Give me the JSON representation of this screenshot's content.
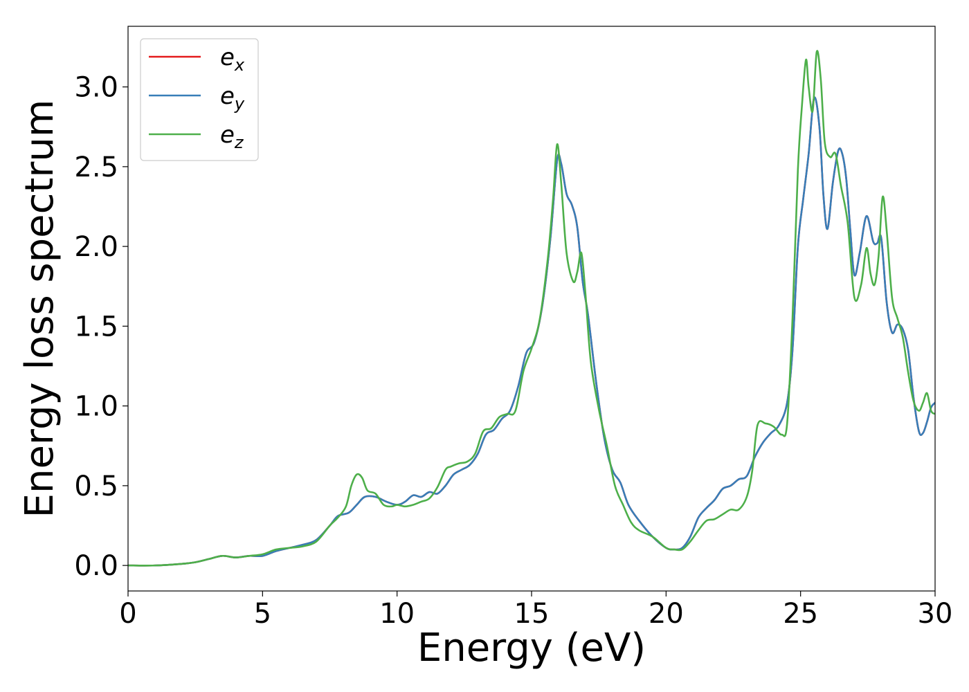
{
  "chart_data": {
    "type": "line",
    "title": "",
    "xlabel": "Energy (eV)",
    "ylabel": "Energy loss spectrum",
    "xlim": [
      0,
      30
    ],
    "ylim": [
      -0.16,
      3.38
    ],
    "xticks": [
      0,
      5,
      10,
      15,
      20,
      25,
      30
    ],
    "yticks": [
      0.0,
      0.5,
      1.0,
      1.5,
      2.0,
      2.5,
      3.0
    ],
    "xtick_labels": [
      "0",
      "5",
      "10",
      "15",
      "20",
      "25",
      "30"
    ],
    "ytick_labels": [
      "0.0",
      "0.5",
      "1.0",
      "1.5",
      "2.0",
      "2.5",
      "3.0"
    ],
    "grid": false,
    "legend_position": "top-left",
    "series": [
      {
        "name": "e_x",
        "legend_base": "e",
        "legend_sub": "x",
        "color": "#e41a1c",
        "x": [
          0,
          1,
          2,
          2.5,
          3,
          3.5,
          4,
          4.5,
          5,
          5.5,
          6,
          6.5,
          7,
          7.5,
          7.8,
          8.2,
          8.5,
          8.8,
          9.2,
          9.6,
          10,
          10.3,
          10.6,
          10.9,
          11.2,
          11.5,
          11.8,
          12.1,
          12.4,
          12.7,
          13,
          13.3,
          13.6,
          13.9,
          14.2,
          14.5,
          14.8,
          15.1,
          15.4,
          15.7,
          15.95,
          16.1,
          16.3,
          16.5,
          16.7,
          16.9,
          17.1,
          17.4,
          17.7,
          18,
          18.3,
          18.6,
          19,
          19.5,
          20,
          20.3,
          20.6,
          20.9,
          21.2,
          21.5,
          21.8,
          22.1,
          22.4,
          22.7,
          23,
          23.3,
          23.6,
          23.9,
          24.2,
          24.5,
          24.7,
          24.9,
          25.1,
          25.3,
          25.5,
          25.7,
          25.85,
          26,
          26.2,
          26.4,
          26.55,
          26.7,
          26.85,
          27,
          27.2,
          27.45,
          27.7,
          27.85,
          28,
          28.2,
          28.4,
          28.6,
          28.8,
          29,
          29.2,
          29.4,
          29.55,
          29.7,
          29.85,
          30
        ],
        "values": [
          0.0,
          0.0,
          0.01,
          0.02,
          0.04,
          0.06,
          0.05,
          0.06,
          0.06,
          0.09,
          0.11,
          0.13,
          0.16,
          0.25,
          0.31,
          0.33,
          0.38,
          0.43,
          0.43,
          0.4,
          0.38,
          0.4,
          0.44,
          0.43,
          0.46,
          0.45,
          0.5,
          0.57,
          0.6,
          0.63,
          0.7,
          0.82,
          0.85,
          0.92,
          0.97,
          1.12,
          1.33,
          1.4,
          1.63,
          2.05,
          2.54,
          2.52,
          2.33,
          2.26,
          2.12,
          1.78,
          1.57,
          1.15,
          0.8,
          0.6,
          0.52,
          0.38,
          0.28,
          0.18,
          0.11,
          0.1,
          0.11,
          0.18,
          0.3,
          0.36,
          0.41,
          0.48,
          0.5,
          0.54,
          0.56,
          0.68,
          0.77,
          0.83,
          0.88,
          1.02,
          1.35,
          2.0,
          2.3,
          2.58,
          2.93,
          2.75,
          2.32,
          2.11,
          2.4,
          2.6,
          2.58,
          2.42,
          2.1,
          1.82,
          1.96,
          2.19,
          2.03,
          2.02,
          2.05,
          1.65,
          1.46,
          1.51,
          1.48,
          1.35,
          1.05,
          0.84,
          0.83,
          0.9,
          0.99,
          1.02
        ]
      },
      {
        "name": "e_y",
        "legend_base": "e",
        "legend_sub": "y",
        "color": "#377eb8",
        "x": [
          0,
          1,
          2,
          2.5,
          3,
          3.5,
          4,
          4.5,
          5,
          5.5,
          6,
          6.5,
          7,
          7.5,
          7.8,
          8.2,
          8.5,
          8.8,
          9.2,
          9.6,
          10,
          10.3,
          10.6,
          10.9,
          11.2,
          11.5,
          11.8,
          12.1,
          12.4,
          12.7,
          13,
          13.3,
          13.6,
          13.9,
          14.2,
          14.5,
          14.8,
          15.1,
          15.4,
          15.7,
          15.95,
          16.1,
          16.3,
          16.5,
          16.7,
          16.9,
          17.1,
          17.4,
          17.7,
          18,
          18.3,
          18.6,
          19,
          19.5,
          20,
          20.3,
          20.6,
          20.9,
          21.2,
          21.5,
          21.8,
          22.1,
          22.4,
          22.7,
          23,
          23.3,
          23.6,
          23.9,
          24.2,
          24.5,
          24.7,
          24.9,
          25.1,
          25.3,
          25.5,
          25.7,
          25.85,
          26,
          26.2,
          26.4,
          26.55,
          26.7,
          26.85,
          27,
          27.2,
          27.45,
          27.7,
          27.85,
          28,
          28.2,
          28.4,
          28.6,
          28.8,
          29,
          29.2,
          29.4,
          29.55,
          29.7,
          29.85,
          30
        ],
        "values": [
          0.0,
          0.0,
          0.01,
          0.02,
          0.04,
          0.06,
          0.05,
          0.06,
          0.06,
          0.09,
          0.11,
          0.13,
          0.16,
          0.25,
          0.31,
          0.33,
          0.38,
          0.43,
          0.43,
          0.4,
          0.38,
          0.4,
          0.44,
          0.43,
          0.46,
          0.45,
          0.5,
          0.57,
          0.6,
          0.63,
          0.7,
          0.82,
          0.85,
          0.92,
          0.97,
          1.12,
          1.33,
          1.4,
          1.63,
          2.05,
          2.54,
          2.52,
          2.33,
          2.26,
          2.12,
          1.78,
          1.57,
          1.15,
          0.8,
          0.6,
          0.52,
          0.38,
          0.28,
          0.18,
          0.11,
          0.1,
          0.11,
          0.18,
          0.3,
          0.36,
          0.41,
          0.48,
          0.5,
          0.54,
          0.56,
          0.68,
          0.77,
          0.83,
          0.88,
          1.02,
          1.35,
          2.0,
          2.3,
          2.58,
          2.93,
          2.75,
          2.32,
          2.11,
          2.4,
          2.6,
          2.58,
          2.42,
          2.1,
          1.82,
          1.96,
          2.19,
          2.03,
          2.02,
          2.05,
          1.65,
          1.46,
          1.51,
          1.48,
          1.35,
          1.05,
          0.84,
          0.83,
          0.9,
          0.99,
          1.02
        ]
      },
      {
        "name": "e_z",
        "legend_base": "e",
        "legend_sub": "z",
        "color": "#4daf4a",
        "x": [
          0,
          1,
          2,
          2.5,
          3,
          3.5,
          4,
          4.5,
          5,
          5.5,
          6,
          6.5,
          7,
          7.5,
          7.8,
          8.1,
          8.3,
          8.5,
          8.7,
          8.9,
          9.2,
          9.5,
          9.8,
          10,
          10.3,
          10.6,
          10.9,
          11.2,
          11.5,
          11.8,
          12,
          12.3,
          12.6,
          12.9,
          13.2,
          13.5,
          13.8,
          14.1,
          14.4,
          14.7,
          15,
          15.3,
          15.6,
          15.8,
          15.95,
          16.1,
          16.3,
          16.55,
          16.7,
          16.85,
          17,
          17.2,
          17.5,
          17.8,
          18.1,
          18.4,
          18.7,
          19,
          19.5,
          20,
          20.3,
          20.6,
          20.9,
          21.2,
          21.5,
          21.8,
          22.1,
          22.4,
          22.7,
          23,
          23.2,
          23.4,
          23.7,
          24,
          24.3,
          24.5,
          24.7,
          24.9,
          25.05,
          25.2,
          25.3,
          25.45,
          25.6,
          25.75,
          25.9,
          26.1,
          26.3,
          26.5,
          26.75,
          27,
          27.25,
          27.45,
          27.6,
          27.75,
          27.9,
          28.05,
          28.2,
          28.4,
          28.6,
          28.8,
          29,
          29.2,
          29.4,
          29.55,
          29.7,
          29.85,
          30
        ],
        "values": [
          0.0,
          0.0,
          0.01,
          0.02,
          0.04,
          0.06,
          0.05,
          0.06,
          0.07,
          0.1,
          0.11,
          0.12,
          0.15,
          0.25,
          0.3,
          0.37,
          0.5,
          0.57,
          0.55,
          0.47,
          0.45,
          0.38,
          0.37,
          0.38,
          0.37,
          0.38,
          0.4,
          0.42,
          0.49,
          0.6,
          0.62,
          0.64,
          0.65,
          0.7,
          0.84,
          0.86,
          0.93,
          0.95,
          0.97,
          1.22,
          1.36,
          1.54,
          1.92,
          2.3,
          2.64,
          2.4,
          1.96,
          1.78,
          1.84,
          1.96,
          1.71,
          1.28,
          0.98,
          0.75,
          0.5,
          0.38,
          0.27,
          0.22,
          0.18,
          0.11,
          0.1,
          0.1,
          0.15,
          0.22,
          0.28,
          0.29,
          0.32,
          0.35,
          0.35,
          0.43,
          0.59,
          0.88,
          0.89,
          0.87,
          0.82,
          0.89,
          1.55,
          2.48,
          2.88,
          3.17,
          3.0,
          2.85,
          3.22,
          3.05,
          2.65,
          2.56,
          2.58,
          2.38,
          2.15,
          1.68,
          1.76,
          1.99,
          1.83,
          1.76,
          1.94,
          2.31,
          2.1,
          1.68,
          1.55,
          1.43,
          1.21,
          1.03,
          0.97,
          1.02,
          1.08,
          0.97,
          0.95
        ]
      }
    ]
  }
}
